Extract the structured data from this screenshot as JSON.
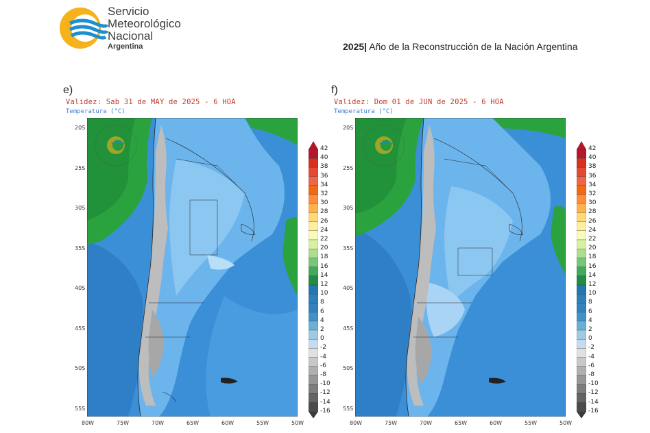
{
  "header": {
    "org_line1": "Servicio",
    "org_line2": "Meteorológico",
    "org_line3": "Nacional",
    "org_line4": "Argentina",
    "motto_year": "2025|",
    "motto_text": "Año de la Reconstrucción de la Nación Argentina"
  },
  "panels": [
    {
      "letter": "e)",
      "validity": "Validez: Sab 31 de MAY de 2025 - 6 HOA",
      "variable": "Temperatura (°C)"
    },
    {
      "letter": "f)",
      "validity": "Validez: Dom 01 de JUN de 2025 - 6 HOA",
      "variable": "Temperatura (°C)"
    }
  ],
  "map_axes": {
    "latitudes": [
      "20S",
      "25S",
      "30S",
      "35S",
      "40S",
      "45S",
      "50S",
      "55S"
    ],
    "longitudes": [
      "80W",
      "75W",
      "70W",
      "65W",
      "60W",
      "55W",
      "50W"
    ]
  },
  "colorbar": {
    "ticks": [
      "42",
      "40",
      "38",
      "36",
      "34",
      "32",
      "30",
      "28",
      "26",
      "24",
      "22",
      "20",
      "18",
      "16",
      "14",
      "12",
      "10",
      "8",
      "6",
      "4",
      "2",
      "0",
      "-2",
      "-4",
      "-6",
      "-8",
      "-10",
      "-12",
      "-14",
      "-16"
    ],
    "colors": [
      "#b2182b",
      "#d7301f",
      "#e34a33",
      "#ef6548",
      "#f16913",
      "#fd8d3c",
      "#feb24c",
      "#fed976",
      "#ffeda0",
      "#f7fcb9",
      "#d9f0a3",
      "#addd8e",
      "#78c679",
      "#41ab5d",
      "#238b45",
      "#1f78b4",
      "#2c7fb8",
      "#3182bd",
      "#4292c6",
      "#6baed6",
      "#9ecae1",
      "#c6dbef",
      "#e0e0e0",
      "#c8c8c8",
      "#afafaf",
      "#969696",
      "#7d7d7d",
      "#646464",
      "#4b4b4b"
    ]
  }
}
